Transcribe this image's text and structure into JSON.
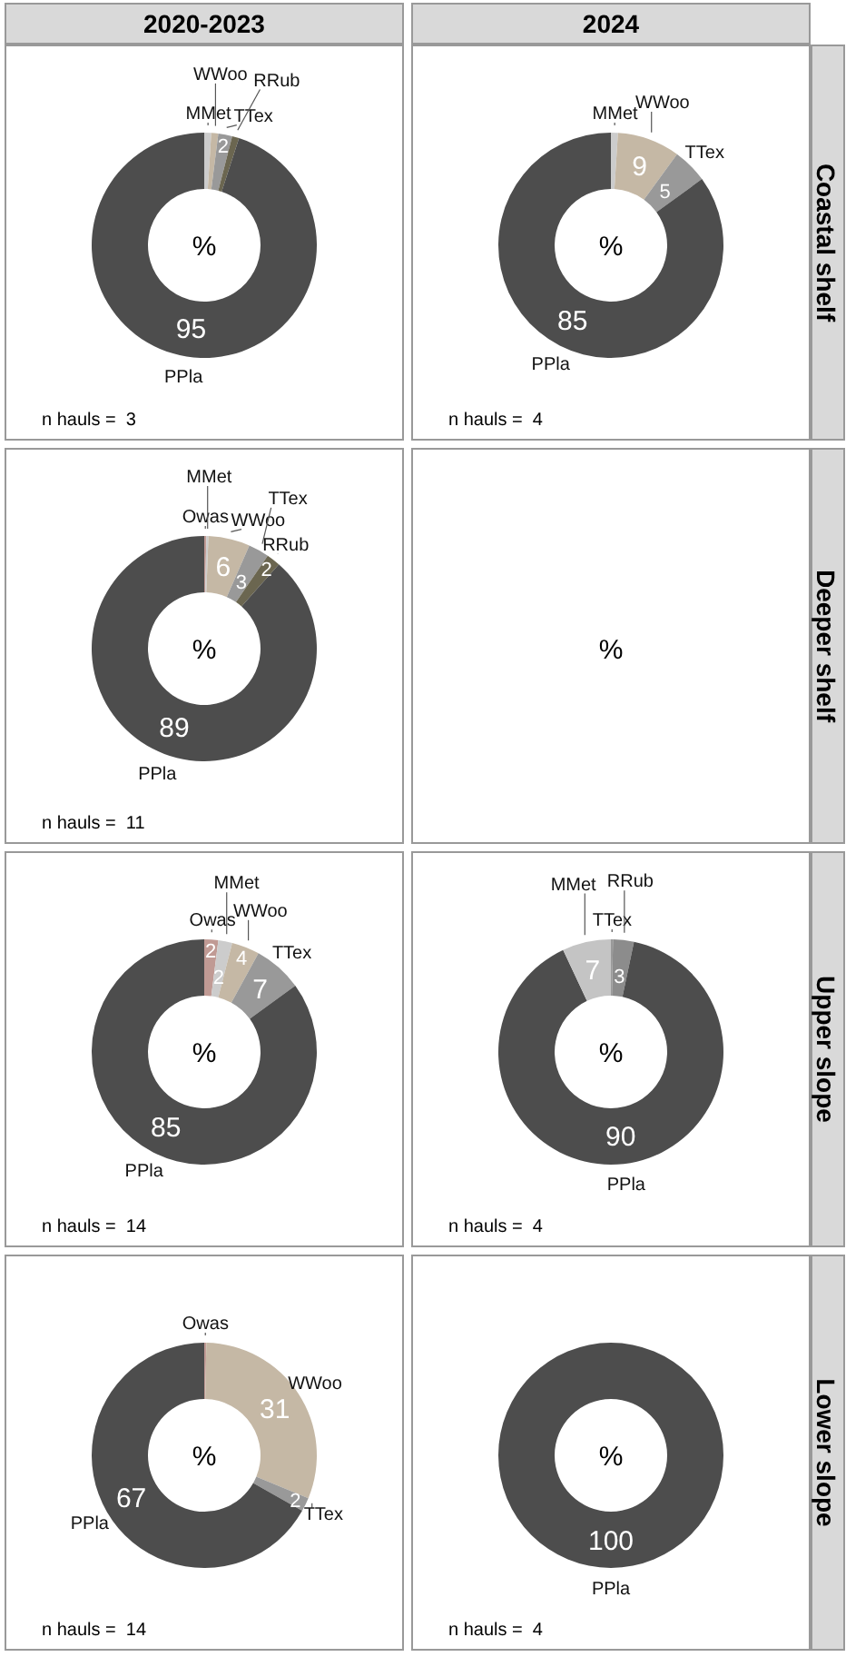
{
  "chart_data": [
    {
      "type": "donut",
      "title": "2020-2023",
      "categories": [
        "MMet",
        "WWoo",
        "TTex",
        "RRub",
        "PPla"
      ],
      "values": [
        1,
        1,
        2,
        1,
        95
      ],
      "colors": [
        "#cccccc",
        "#c5b8a5",
        "#999999",
        "#6b6650",
        "#4d4d4d"
      ],
      "value_labels": [
        null,
        null,
        "2",
        null,
        "95"
      ],
      "annotations": [
        "%",
        "n hauls =  3"
      ]
    },
    {
      "type": "donut",
      "title": "2024",
      "y2label": "Coastal shelf",
      "categories": [
        "MMet",
        "WWoo",
        "TTex",
        "PPla"
      ],
      "values": [
        1,
        9,
        5,
        85
      ],
      "colors": [
        "#cccccc",
        "#c5b8a5",
        "#999999",
        "#4d4d4d"
      ],
      "value_labels": [
        null,
        "9",
        "5",
        "85"
      ],
      "annotations": [
        "%",
        "n hauls =  4"
      ]
    },
    {
      "type": "donut",
      "categories": [
        "Owas",
        "MMet",
        "WWoo",
        "TTex",
        "RRub",
        "PPla"
      ],
      "values": [
        0.3,
        0.3,
        6,
        3,
        2,
        89
      ],
      "colors": [
        "#c09a94",
        "#cccccc",
        "#c5b8a5",
        "#999999",
        "#6b6650",
        "#4d4d4d"
      ],
      "value_labels": [
        null,
        null,
        "6",
        "3",
        "2",
        "89"
      ],
      "annotations": [
        "%",
        "n hauls =  11"
      ]
    },
    {
      "type": "other",
      "y2label": "Deeper shelf",
      "annotations": [
        "%"
      ]
    },
    {
      "type": "donut",
      "categories": [
        "Owas",
        "MMet",
        "WWoo",
        "TTex",
        "PPla"
      ],
      "values": [
        2,
        2,
        4,
        7,
        85
      ],
      "colors": [
        "#c09a94",
        "#cccccc",
        "#c5b8a5",
        "#999999",
        "#4d4d4d"
      ],
      "value_labels": [
        "2",
        "2",
        "4",
        "7",
        "85"
      ],
      "annotations": [
        "%",
        "n hauls =  14"
      ]
    },
    {
      "type": "donut",
      "y2label": "Upper slope",
      "categories": [
        "TTex",
        "RRub",
        "PPla",
        "MMet"
      ],
      "values": [
        0.3,
        3,
        90,
        7
      ],
      "colors": [
        "#999999",
        "#8c8c8c",
        "#4d4d4d",
        "#c4c4c4"
      ],
      "value_labels": [
        null,
        "3",
        "90",
        "7"
      ],
      "annotations": [
        "%",
        "n hauls =  4"
      ]
    },
    {
      "type": "donut",
      "categories": [
        "Owas",
        "WWoo",
        "TTex",
        "PPla"
      ],
      "values": [
        0.3,
        31,
        2,
        67
      ],
      "colors": [
        "#c09a94",
        "#c5b8a5",
        "#999999",
        "#4d4d4d"
      ],
      "value_labels": [
        null,
        "31",
        "2",
        "67"
      ],
      "annotations": [
        "%",
        "n hauls =  14"
      ]
    },
    {
      "type": "donut",
      "y2label": "Lower slope",
      "categories": [
        "PPla"
      ],
      "values": [
        100
      ],
      "colors": [
        "#4d4d4d"
      ],
      "value_labels": [
        "100"
      ],
      "annotations": [
        "%",
        "n hauls =  4"
      ]
    }
  ]
}
